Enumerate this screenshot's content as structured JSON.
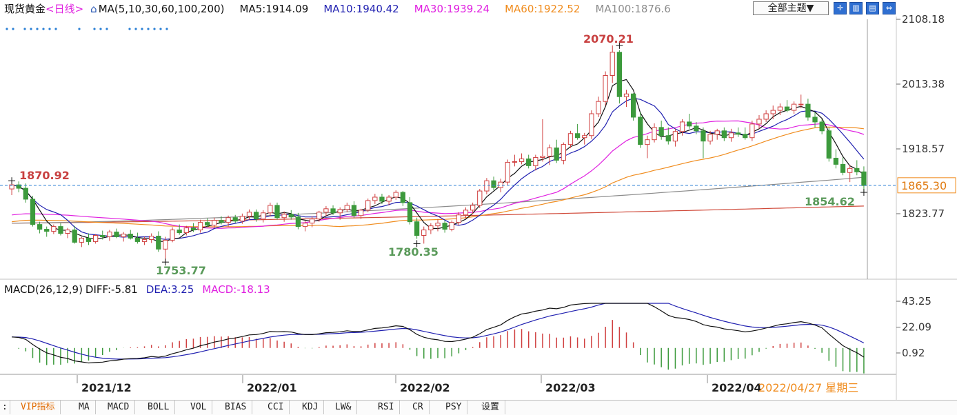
{
  "header": {
    "symbol": "现货黄金",
    "period": "<日线>",
    "ma_params": "MA(5,10,30,60,100,200)",
    "ma_values": [
      {
        "label": "MA5:1914.09",
        "color": "#111111"
      },
      {
        "label": "MA10:1940.42",
        "color": "#1f1fb0"
      },
      {
        "label": "MA30:1939.24",
        "color": "#e020e0"
      },
      {
        "label": "MA60:1922.52",
        "color": "#f08c1e"
      },
      {
        "label": "MA100:1876.6",
        "color": "#8c8c8c"
      }
    ],
    "theme_button": "全部主题▼"
  },
  "macd_header": {
    "params": "MACD(26,12,9)",
    "diff": "DIFF:-5.81",
    "dea": "DEA:3.25",
    "macd": "MACD:-18.13"
  },
  "colors": {
    "up": "#d04040",
    "down": "#3c9a3c",
    "ma5": "#111111",
    "ma10": "#1f1fb0",
    "ma30": "#e020e0",
    "ma60": "#f08c1e",
    "ma100": "#8c8c8c",
    "ma200": "#d04a3a",
    "dashed": "#2a7fd4",
    "price_tag": "#f08c1e"
  },
  "tabs": [
    "VIP指标",
    "MA",
    "MACD",
    "BOLL",
    "VOL",
    "BIAS",
    "CCI",
    "KDJ",
    "LW&",
    "RSI",
    "CR",
    "PSY",
    "设置"
  ],
  "chart_data": [
    {
      "type": "candlestick",
      "x_labels": [
        "2021/12",
        "2022/01",
        "2022/02",
        "2022/03",
        "2022/04",
        "2022/04/27 星期三"
      ],
      "y_ticks": [
        "2108.18",
        "2013.38",
        "1918.57",
        "1823.77"
      ],
      "current_price": "1865.30",
      "annotations": [
        {
          "text": "1870.92",
          "kind": "high"
        },
        {
          "text": "1753.77",
          "kind": "low"
        },
        {
          "text": "1780.35",
          "kind": "low"
        },
        {
          "text": "2070.21",
          "kind": "high"
        },
        {
          "text": "1854.62",
          "kind": "low"
        }
      ],
      "ohlc": [
        [
          1860,
          1872,
          1851,
          1866
        ],
        [
          1866,
          1871,
          1855,
          1861
        ],
        [
          1861,
          1868,
          1840,
          1845
        ],
        [
          1845,
          1850,
          1805,
          1808
        ],
        [
          1808,
          1812,
          1795,
          1801
        ],
        [
          1801,
          1805,
          1790,
          1798
        ],
        [
          1798,
          1808,
          1794,
          1805
        ],
        [
          1805,
          1810,
          1792,
          1795
        ],
        [
          1795,
          1803,
          1788,
          1800
        ],
        [
          1800,
          1806,
          1780,
          1782
        ],
        [
          1782,
          1790,
          1775,
          1788
        ],
        [
          1788,
          1795,
          1778,
          1783
        ],
        [
          1783,
          1794,
          1780,
          1792
        ],
        [
          1792,
          1799,
          1786,
          1790
        ],
        [
          1790,
          1800,
          1784,
          1797
        ],
        [
          1797,
          1802,
          1788,
          1790
        ],
        [
          1790,
          1797,
          1783,
          1794
        ],
        [
          1794,
          1800,
          1786,
          1788
        ],
        [
          1788,
          1796,
          1780,
          1783
        ],
        [
          1783,
          1790,
          1778,
          1786
        ],
        [
          1786,
          1795,
          1781,
          1791
        ],
        [
          1791,
          1798,
          1768,
          1772
        ],
        [
          1772,
          1790,
          1754,
          1785
        ],
        [
          1785,
          1804,
          1782,
          1800
        ],
        [
          1800,
          1808,
          1793,
          1796
        ],
        [
          1796,
          1806,
          1792,
          1803
        ],
        [
          1803,
          1810,
          1797,
          1800
        ],
        [
          1800,
          1815,
          1796,
          1811
        ],
        [
          1811,
          1817,
          1804,
          1807
        ],
        [
          1807,
          1818,
          1803,
          1814
        ],
        [
          1814,
          1820,
          1808,
          1811
        ],
        [
          1811,
          1821,
          1805,
          1818
        ],
        [
          1818,
          1822,
          1810,
          1813
        ],
        [
          1813,
          1824,
          1809,
          1820
        ],
        [
          1820,
          1830,
          1815,
          1826
        ],
        [
          1826,
          1830,
          1812,
          1816
        ],
        [
          1816,
          1829,
          1811,
          1825
        ],
        [
          1825,
          1840,
          1820,
          1836
        ],
        [
          1836,
          1840,
          1815,
          1818
        ],
        [
          1818,
          1827,
          1812,
          1823
        ],
        [
          1823,
          1829,
          1815,
          1819
        ],
        [
          1819,
          1825,
          1801,
          1805
        ],
        [
          1805,
          1813,
          1798,
          1810
        ],
        [
          1810,
          1820,
          1804,
          1816
        ],
        [
          1816,
          1828,
          1812,
          1826
        ],
        [
          1826,
          1835,
          1820,
          1831
        ],
        [
          1831,
          1836,
          1822,
          1825
        ],
        [
          1825,
          1833,
          1815,
          1830
        ],
        [
          1830,
          1840,
          1826,
          1836
        ],
        [
          1836,
          1842,
          1818,
          1821
        ],
        [
          1821,
          1831,
          1816,
          1829
        ],
        [
          1829,
          1846,
          1826,
          1843
        ],
        [
          1843,
          1853,
          1838,
          1848
        ],
        [
          1848,
          1853,
          1838,
          1842
        ],
        [
          1842,
          1851,
          1836,
          1848
        ],
        [
          1848,
          1858,
          1844,
          1855
        ],
        [
          1855,
          1857,
          1835,
          1840
        ],
        [
          1840,
          1848,
          1808,
          1812
        ],
        [
          1812,
          1818,
          1787,
          1792
        ],
        [
          1792,
          1805,
          1780,
          1800
        ],
        [
          1800,
          1810,
          1794,
          1806
        ],
        [
          1806,
          1816,
          1798,
          1810
        ],
        [
          1810,
          1814,
          1796,
          1801
        ],
        [
          1801,
          1814,
          1798,
          1811
        ],
        [
          1811,
          1826,
          1807,
          1822
        ],
        [
          1822,
          1833,
          1817,
          1829
        ],
        [
          1829,
          1840,
          1823,
          1836
        ],
        [
          1836,
          1860,
          1832,
          1857
        ],
        [
          1857,
          1876,
          1852,
          1872
        ],
        [
          1872,
          1878,
          1858,
          1862
        ],
        [
          1862,
          1875,
          1855,
          1870
        ],
        [
          1870,
          1903,
          1866,
          1899
        ],
        [
          1899,
          1910,
          1893,
          1900
        ],
        [
          1900,
          1912,
          1896,
          1904
        ],
        [
          1904,
          1910,
          1890,
          1894
        ],
        [
          1894,
          1910,
          1887,
          1906
        ],
        [
          1906,
          1962,
          1900,
          1908
        ],
        [
          1908,
          1925,
          1895,
          1920
        ],
        [
          1920,
          1932,
          1898,
          1902
        ],
        [
          1902,
          1928,
          1896,
          1925
        ],
        [
          1925,
          1945,
          1920,
          1941
        ],
        [
          1941,
          1955,
          1932,
          1935
        ],
        [
          1935,
          1942,
          1925,
          1938
        ],
        [
          1938,
          1975,
          1933,
          1970
        ],
        [
          1970,
          1995,
          1965,
          1988
        ],
        [
          1988,
          2032,
          1982,
          2026
        ],
        [
          2026,
          2070,
          2015,
          2060
        ],
        [
          2060,
          2063,
          1985,
          1995
        ],
        [
          1995,
          2005,
          1980,
          1999
        ],
        [
          1999,
          2000,
          1960,
          1965
        ],
        [
          1965,
          1972,
          1920,
          1925
        ],
        [
          1925,
          1938,
          1905,
          1932
        ],
        [
          1932,
          1956,
          1928,
          1950
        ],
        [
          1950,
          1960,
          1932,
          1938
        ],
        [
          1938,
          1950,
          1925,
          1930
        ],
        [
          1930,
          1948,
          1922,
          1944
        ],
        [
          1944,
          1962,
          1938,
          1958
        ],
        [
          1958,
          1970,
          1948,
          1952
        ],
        [
          1952,
          1958,
          1940,
          1945
        ],
        [
          1945,
          1950,
          1905,
          1930
        ],
        [
          1930,
          1945,
          1925,
          1940
        ],
        [
          1940,
          1948,
          1932,
          1945
        ],
        [
          1945,
          1950,
          1930,
          1935
        ],
        [
          1935,
          1948,
          1929,
          1942
        ],
        [
          1942,
          1950,
          1936,
          1940
        ],
        [
          1940,
          1950,
          1932,
          1935
        ],
        [
          1935,
          1960,
          1930,
          1955
        ],
        [
          1955,
          1968,
          1948,
          1962
        ],
        [
          1962,
          1975,
          1958,
          1970
        ],
        [
          1970,
          1982,
          1962,
          1975
        ],
        [
          1975,
          1985,
          1968,
          1980
        ],
        [
          1980,
          1990,
          1972,
          1975
        ],
        [
          1975,
          1988,
          1970,
          1984
        ],
        [
          1984,
          1998,
          1978,
          1984
        ],
        [
          1984,
          1992,
          1960,
          1965
        ],
        [
          1965,
          1972,
          1950,
          1958
        ],
        [
          1958,
          1962,
          1940,
          1945
        ],
        [
          1945,
          1950,
          1900,
          1905
        ],
        [
          1905,
          1918,
          1890,
          1896
        ],
        [
          1896,
          1906,
          1880,
          1884
        ],
        [
          1884,
          1895,
          1870,
          1890
        ],
        [
          1890,
          1902,
          1880,
          1885
        ],
        [
          1885,
          1893,
          1856,
          1865
        ]
      ],
      "ma_lines": {
        "ma5": {
          "start": 1866,
          "end": 1914
        },
        "ma10": {
          "start": 1868,
          "end": 1940
        },
        "ma30": {
          "start": 1822,
          "end": 1939
        },
        "ma60": {
          "start": 1812,
          "end": 1922
        },
        "ma100": {
          "start": 1810,
          "end": 1877
        },
        "ma200": {
          "start": 1810,
          "end": 1835
        }
      }
    },
    {
      "type": "macd",
      "y_ticks": [
        "43.25",
        "22.09",
        "0.92"
      ],
      "diff_last": -5.81,
      "dea_last": 3.25,
      "macd_last": -18.13
    }
  ]
}
